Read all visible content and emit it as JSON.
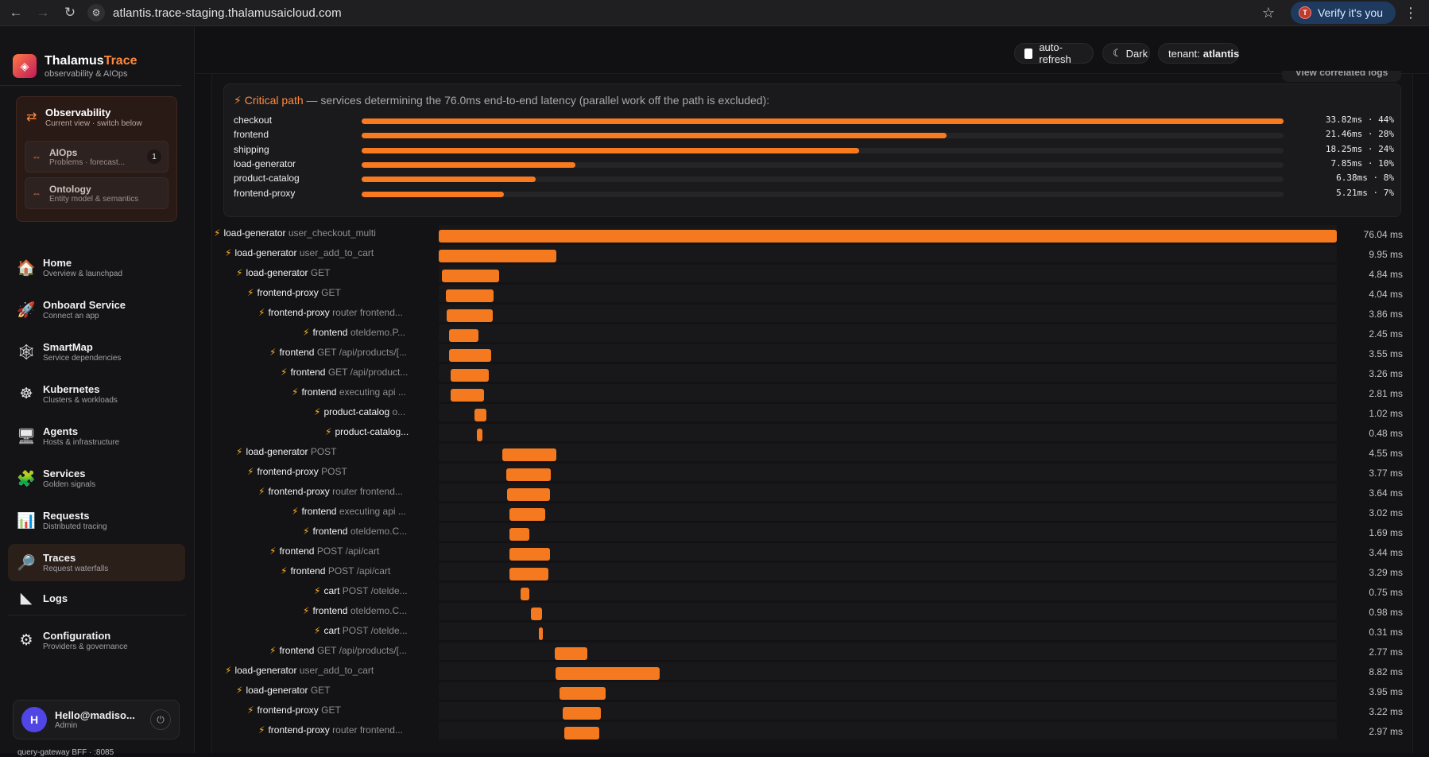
{
  "browser": {
    "url": "atlantis.trace-staging.thalamusaicloud.com",
    "verify_label": "Verify it's you",
    "verify_avatar": "T"
  },
  "brand": {
    "name_main": "Thalamus",
    "name_accent": "Trace",
    "subtitle": "observability & AIOps"
  },
  "switcher": {
    "current": {
      "title": "Observability",
      "subtitle": "Current view · switch below"
    },
    "items": [
      {
        "title": "AIOps",
        "subtitle": "Problems · forecast...",
        "badge": "1"
      },
      {
        "title": "Ontology",
        "subtitle": "Entity model & semantics"
      }
    ]
  },
  "nav": [
    {
      "title": "Home",
      "subtitle": "Overview & launchpad",
      "icon": "house-icon",
      "glyph": "🏠"
    },
    {
      "title": "Onboard Service",
      "subtitle": "Connect an app",
      "icon": "rocket-icon",
      "glyph": "🚀"
    },
    {
      "title": "SmartMap",
      "subtitle": "Service dependencies",
      "icon": "web-icon",
      "glyph": "🕸"
    },
    {
      "title": "Kubernetes",
      "subtitle": "Clusters & workloads",
      "icon": "kubernetes-icon",
      "glyph": "☸"
    },
    {
      "title": "Agents",
      "subtitle": "Hosts & infrastructure",
      "icon": "monitor-icon",
      "glyph": "🖥"
    },
    {
      "title": "Services",
      "subtitle": "Golden signals",
      "icon": "puzzle-icon",
      "glyph": "🧩"
    },
    {
      "title": "Requests",
      "subtitle": "Distributed tracing",
      "icon": "bar-chart-icon",
      "glyph": "📊"
    },
    {
      "title": "Traces",
      "subtitle": "Request waterfalls",
      "icon": "magnifier-icon",
      "glyph": "🔎",
      "active": true
    },
    {
      "title": "Logs",
      "subtitle": "",
      "icon": "logs-icon",
      "glyph": "◣"
    },
    {
      "title": "Configuration",
      "subtitle": "Providers & governance",
      "icon": "gear-icon",
      "glyph": "⚙"
    }
  ],
  "user": {
    "initial": "H",
    "name": "Hello@madiso...",
    "role": "Admin"
  },
  "gateway": "query-gateway BFF · :8085",
  "topbar": {
    "auto_refresh": "auto-refresh",
    "theme": "Dark",
    "tenant_label": "tenant:",
    "tenant_value": "atlantis"
  },
  "correlated_tab": "View correlated logs",
  "critical": {
    "title_accent": "Critical path",
    "title_rest": " — services determining the 76.0ms end-to-end latency (parallel work off the path is excluded):",
    "rows": [
      {
        "name": "checkout",
        "value": "33.82ms · 44%",
        "ms": 33.82
      },
      {
        "name": "frontend",
        "value": "21.46ms · 28%",
        "ms": 21.46
      },
      {
        "name": "shipping",
        "value": "18.25ms · 24%",
        "ms": 18.25
      },
      {
        "name": "load-generator",
        "value": "7.85ms · 10%",
        "ms": 7.85
      },
      {
        "name": "product-catalog",
        "value": "6.38ms · 8%",
        "ms": 6.38
      },
      {
        "name": "frontend-proxy",
        "value": "5.21ms · 7%",
        "ms": 5.21
      }
    ]
  },
  "waterfall": {
    "total_ms": 76.04,
    "spans": [
      {
        "depth": 0,
        "service": "load-generator",
        "op": "user_checkout_multi",
        "start_ms": 0.0,
        "dur_ms": 76.04,
        "duration": "76.04 ms"
      },
      {
        "depth": 1,
        "service": "load-generator",
        "op": "user_add_to_cart",
        "start_ms": 0.0,
        "dur_ms": 9.95,
        "duration": "9.95 ms"
      },
      {
        "depth": 2,
        "service": "load-generator",
        "op": "GET",
        "start_ms": 0.3,
        "dur_ms": 4.84,
        "duration": "4.84 ms"
      },
      {
        "depth": 3,
        "service": "frontend-proxy",
        "op": "GET",
        "start_ms": 0.6,
        "dur_ms": 4.04,
        "duration": "4.04 ms"
      },
      {
        "depth": 4,
        "service": "frontend-proxy",
        "op": "router frontend...",
        "start_ms": 0.7,
        "dur_ms": 3.86,
        "duration": "3.86 ms"
      },
      {
        "depth": 8,
        "service": "frontend",
        "op": "oteldemo.P...",
        "start_ms": 0.9,
        "dur_ms": 2.45,
        "duration": "2.45 ms"
      },
      {
        "depth": 5,
        "service": "frontend",
        "op": "GET /api/products/[...",
        "start_ms": 0.9,
        "dur_ms": 3.55,
        "duration": "3.55 ms"
      },
      {
        "depth": 6,
        "service": "frontend",
        "op": "GET /api/product...",
        "start_ms": 1.0,
        "dur_ms": 3.26,
        "duration": "3.26 ms"
      },
      {
        "depth": 7,
        "service": "frontend",
        "op": "executing api ...",
        "start_ms": 1.0,
        "dur_ms": 2.81,
        "duration": "2.81 ms"
      },
      {
        "depth": 9,
        "service": "product-catalog",
        "op": "o...",
        "start_ms": 3.0,
        "dur_ms": 1.02,
        "duration": "1.02 ms"
      },
      {
        "depth": 10,
        "service": "product-catalog...",
        "op": "",
        "start_ms": 3.2,
        "dur_ms": 0.48,
        "duration": "0.48 ms"
      },
      {
        "depth": 2,
        "service": "load-generator",
        "op": "POST",
        "start_ms": 5.4,
        "dur_ms": 4.55,
        "duration": "4.55 ms"
      },
      {
        "depth": 3,
        "service": "frontend-proxy",
        "op": "POST",
        "start_ms": 5.7,
        "dur_ms": 3.77,
        "duration": "3.77 ms"
      },
      {
        "depth": 4,
        "service": "frontend-proxy",
        "op": "router frontend...",
        "start_ms": 5.8,
        "dur_ms": 3.64,
        "duration": "3.64 ms"
      },
      {
        "depth": 7,
        "service": "frontend",
        "op": "executing api ...",
        "start_ms": 6.0,
        "dur_ms": 3.02,
        "duration": "3.02 ms"
      },
      {
        "depth": 8,
        "service": "frontend",
        "op": "oteldemo.C...",
        "start_ms": 6.0,
        "dur_ms": 1.69,
        "duration": "1.69 ms"
      },
      {
        "depth": 5,
        "service": "frontend",
        "op": "POST /api/cart",
        "start_ms": 6.0,
        "dur_ms": 3.44,
        "duration": "3.44 ms"
      },
      {
        "depth": 6,
        "service": "frontend",
        "op": "POST /api/cart",
        "start_ms": 6.0,
        "dur_ms": 3.29,
        "duration": "3.29 ms"
      },
      {
        "depth": 9,
        "service": "cart",
        "op": "POST /otelde...",
        "start_ms": 6.9,
        "dur_ms": 0.75,
        "duration": "0.75 ms"
      },
      {
        "depth": 8,
        "service": "frontend",
        "op": "oteldemo.C...",
        "start_ms": 7.8,
        "dur_ms": 0.98,
        "duration": "0.98 ms"
      },
      {
        "depth": 9,
        "service": "cart",
        "op": "POST /otelde...",
        "start_ms": 8.5,
        "dur_ms": 0.31,
        "duration": "0.31 ms"
      },
      {
        "depth": 5,
        "service": "frontend",
        "op": "GET /api/products/[...",
        "start_ms": 9.8,
        "dur_ms": 2.77,
        "duration": "2.77 ms"
      },
      {
        "depth": 1,
        "service": "load-generator",
        "op": "user_add_to_cart",
        "start_ms": 9.9,
        "dur_ms": 8.82,
        "duration": "8.82 ms"
      },
      {
        "depth": 2,
        "service": "load-generator",
        "op": "GET",
        "start_ms": 10.2,
        "dur_ms": 3.95,
        "duration": "3.95 ms"
      },
      {
        "depth": 3,
        "service": "frontend-proxy",
        "op": "GET",
        "start_ms": 10.5,
        "dur_ms": 3.22,
        "duration": "3.22 ms"
      },
      {
        "depth": 4,
        "service": "frontend-proxy",
        "op": "router frontend...",
        "start_ms": 10.6,
        "dur_ms": 2.97,
        "duration": "2.97 ms"
      }
    ]
  }
}
